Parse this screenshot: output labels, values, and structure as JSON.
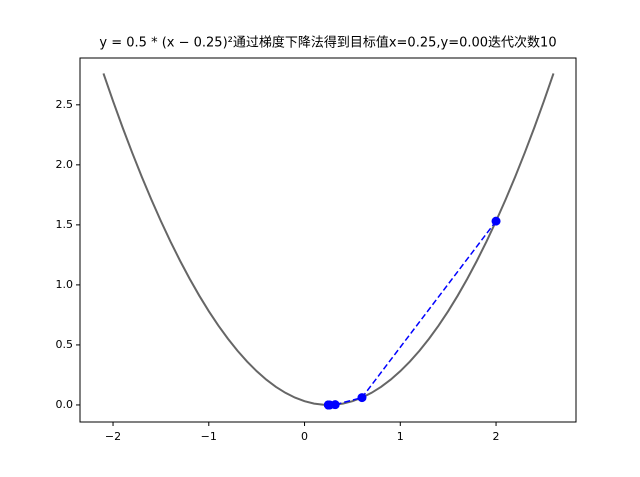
{
  "chart_data": {
    "type": "line",
    "title": "y = 0.5 * (x − 0.25)²通过梯度下降法得到目标值x=0.25,y=0.00迭代次数10",
    "xlim": [
      -2.345,
      2.835
    ],
    "ylim": [
      -0.142,
      2.89
    ],
    "xticks": [
      {
        "value": -2,
        "label": "−2"
      },
      {
        "value": -1,
        "label": "−1"
      },
      0,
      1,
      2
    ],
    "yticks": [
      {
        "value": 0,
        "label": "0.0"
      },
      {
        "value": 0.5,
        "label": "0.5"
      },
      {
        "value": 1,
        "label": "1.0"
      },
      {
        "value": 1.5,
        "label": "1.5"
      },
      {
        "value": 2,
        "label": "2.0"
      },
      {
        "value": 2.5,
        "label": "2.5"
      }
    ],
    "series": [
      {
        "color": "#666666",
        "line_width": 2,
        "dashed": false,
        "markers": false,
        "x": [
          -2.1,
          -2.0,
          -1.9,
          -1.8,
          -1.7,
          -1.6,
          -1.5,
          -1.4,
          -1.3,
          -1.2,
          -1.1,
          -1.0,
          -0.9,
          -0.8,
          -0.7,
          -0.6,
          -0.5,
          -0.4,
          -0.3,
          -0.2,
          -0.1,
          0.0,
          0.1,
          0.2,
          0.25,
          0.3,
          0.4,
          0.5,
          0.6,
          0.7,
          0.8,
          0.9,
          1.0,
          1.1,
          1.2,
          1.3,
          1.4,
          1.5,
          1.6,
          1.7,
          1.8,
          1.9,
          2.0,
          2.1,
          2.2,
          2.3,
          2.4,
          2.5,
          2.6
        ],
        "values": [
          2.76125,
          2.53125,
          2.31125,
          2.10125,
          1.90125,
          1.71125,
          1.53125,
          1.36125,
          1.20125,
          1.05125,
          0.91125,
          0.78125,
          0.66125,
          0.55125,
          0.45125,
          0.36125,
          0.28125,
          0.21125,
          0.15125,
          0.10125,
          0.06125,
          0.03125,
          0.01125,
          0.00125,
          0,
          0.00125,
          0.01125,
          0.03125,
          0.06125,
          0.10125,
          0.15125,
          0.21125,
          0.28125,
          0.36125,
          0.45125,
          0.55125,
          0.66125,
          0.78125,
          0.91125,
          1.05125,
          1.20125,
          1.36125,
          1.53125,
          1.71125,
          1.90125,
          2.10125,
          2.31125,
          2.53125,
          2.76125
        ]
      },
      {
        "color": "#0000ff",
        "line_width": 1.5,
        "dashed": true,
        "markers": true,
        "x": [
          2.0,
          0.6,
          0.32,
          0.264,
          0.2528,
          0.25056,
          0.250112,
          0.2500224,
          0.25000448,
          0.250000896,
          0.2500001792
        ],
        "values": [
          1.53125,
          0.06125,
          0.00245,
          9.8e-05,
          3.92e-06,
          1.568e-07,
          0,
          0,
          0,
          0,
          0
        ]
      }
    ]
  }
}
